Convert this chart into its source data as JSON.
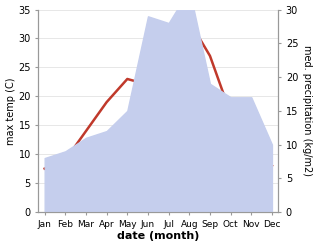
{
  "months": [
    "Jan",
    "Feb",
    "Mar",
    "Apr",
    "May",
    "Jun",
    "Jul",
    "Aug",
    "Sep",
    "Oct",
    "Nov",
    "Dec"
  ],
  "temp": [
    7.5,
    9.0,
    14.0,
    19.0,
    23.0,
    22.0,
    31.0,
    33.0,
    27.0,
    17.0,
    11.0,
    8.0
  ],
  "precip": [
    8.0,
    9.0,
    11.0,
    12.0,
    15.0,
    29.0,
    28.0,
    33.0,
    19.0,
    17.0,
    17.0,
    10.0
  ],
  "temp_color": "#c0392b",
  "precip_fill_color": "#c5ceed",
  "ylim_temp": [
    0,
    35
  ],
  "ylim_precip": [
    0,
    30
  ],
  "yticks_temp": [
    0,
    5,
    10,
    15,
    20,
    25,
    30,
    35
  ],
  "yticks_precip": [
    0,
    5,
    10,
    15,
    20,
    25,
    30
  ],
  "xlabel": "date (month)",
  "ylabel_left": "max temp (C)",
  "ylabel_right": "med. precipitation (kg/m2)",
  "bg_color": "#ffffff",
  "spine_color": "#999999",
  "grid_color": "#dddddd"
}
